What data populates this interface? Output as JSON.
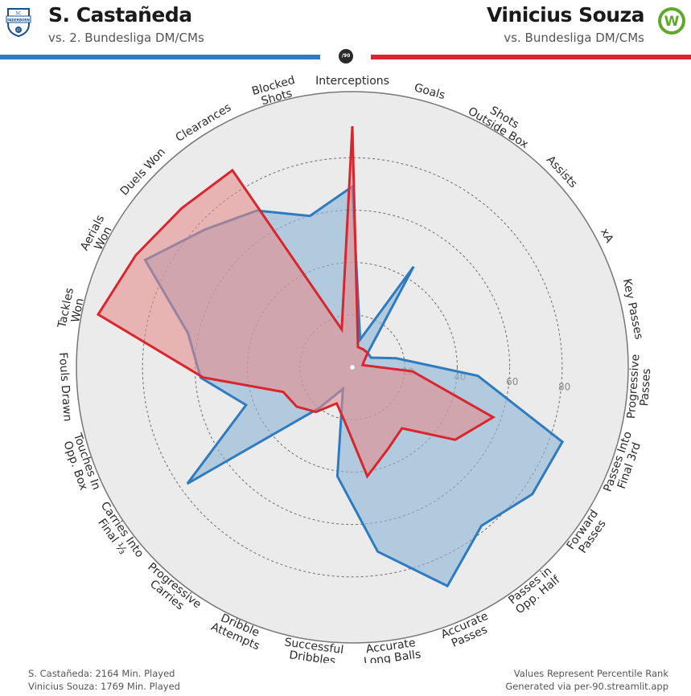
{
  "header": {
    "player1": {
      "name": "S. Castañeda",
      "comparison": "vs. 2. Bundesliga DM/CMs",
      "color": "#2f7bbf",
      "logo_text_top": "SC",
      "logo_text_mid": "PADERBORN",
      "logo_text_bot": "07"
    },
    "player2": {
      "name": "Vinicius Souza",
      "comparison": "vs. Bundesliga DM/CMs",
      "color": "#d9262e",
      "logo_text": "W"
    },
    "badge": "/90"
  },
  "footer": {
    "left_line1": "S. Castañeda: 2164 Min. Played",
    "left_line2": "Vinicius Souza: 1769 Min. Played",
    "right_line1": "Values Represent Percentile Rank",
    "right_line2": "Generated via per-90.streamlit.app"
  },
  "chart_data": {
    "type": "radar",
    "rmax": 100,
    "ring_ticks": [
      20,
      40,
      60,
      80
    ],
    "categories": [
      [
        "Interceptions"
      ],
      [
        "Goals"
      ],
      [
        "Shots",
        "Outside Box"
      ],
      [
        "Assists"
      ],
      [
        "xA"
      ],
      [
        "Key Passes"
      ],
      [
        "Progressive",
        "Passes"
      ],
      [
        "Passes Into",
        "Final 3rd"
      ],
      [
        "Forward",
        "Passes"
      ],
      [
        "Passes in",
        "Opp. Half"
      ],
      [
        "Accurate",
        "Passes"
      ],
      [
        "Accurate",
        "Long Balls"
      ],
      [
        "Successful",
        "Dribbles"
      ],
      [
        "Dribble",
        "Attempts"
      ],
      [
        "Progressive",
        "Carries"
      ],
      [
        "Carries Into",
        "Final ⅓"
      ],
      [
        "Touches In",
        "Opp. Box"
      ],
      [
        "Fouls Drawn"
      ],
      [
        "Tackles",
        "Won"
      ],
      [
        "Aerials",
        "Won"
      ],
      [
        "Duels Won"
      ],
      [
        "Clearances"
      ],
      [
        "Blocked",
        "Shots"
      ]
    ],
    "series": [
      {
        "name": "S. Castañeda",
        "color": "#2f7bbf",
        "fill": "rgba(143,182,214,0.62)",
        "values": [
          69,
          11,
          45,
          8,
          8,
          17,
          48,
          85,
          84,
          78,
          91,
          71,
          42,
          9,
          20,
          77,
          43,
          58,
          64,
          89,
          77,
          70,
          60
        ]
      },
      {
        "name": "Vinicius Souza",
        "color": "#d9262e",
        "fill": "rgba(229,137,137,0.58)",
        "values": [
          92,
          8,
          8,
          8,
          5,
          4,
          23,
          57,
          48,
          30,
          34,
          42,
          21,
          15,
          22,
          26,
          28,
          57,
          99,
          93,
          89,
          88,
          15
        ]
      }
    ]
  }
}
